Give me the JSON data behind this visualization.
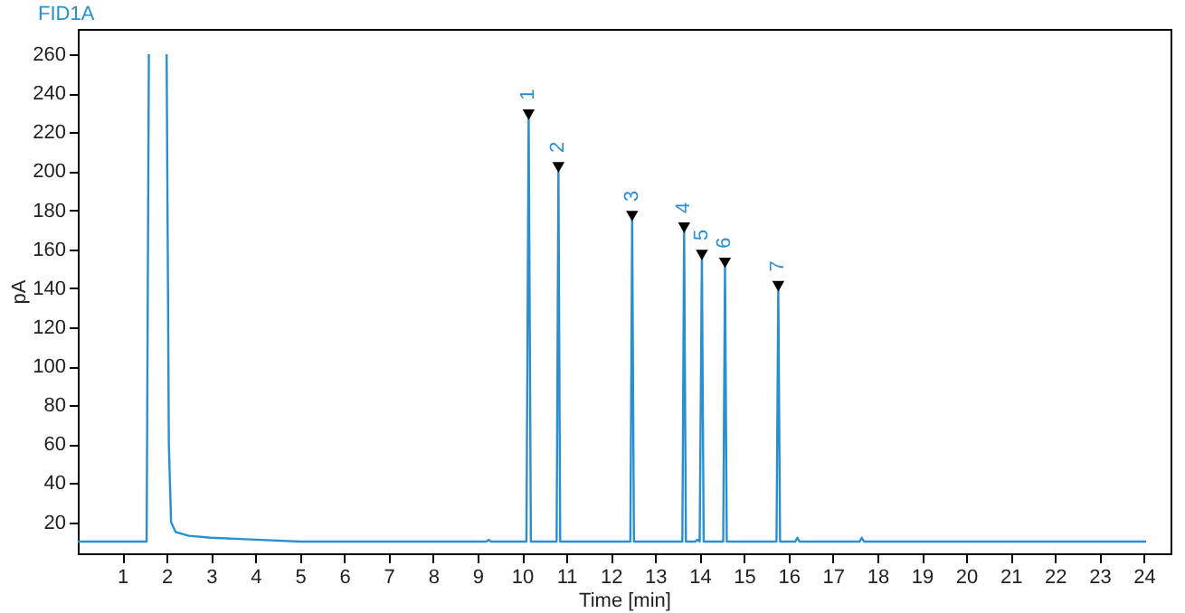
{
  "chart_data": {
    "type": "line",
    "title": "FID1A",
    "xlabel": "Time [min]",
    "ylabel": "pA",
    "xlim": [
      0,
      24.6
    ],
    "ylim": [
      4,
      273
    ],
    "xticks": [
      1,
      2,
      3,
      4,
      5,
      6,
      7,
      8,
      9,
      10,
      11,
      12,
      13,
      14,
      15,
      16,
      17,
      18,
      19,
      20,
      21,
      22,
      23,
      24
    ],
    "yticks": [
      20,
      40,
      60,
      80,
      100,
      120,
      140,
      160,
      180,
      200,
      220,
      240,
      260
    ],
    "series": [
      {
        "color": "#2a8fd0",
        "x": [
          0,
          1.55,
          1.6,
          1.62,
          1.98,
          2.0,
          2.05,
          2.1,
          2.2,
          2.5,
          3,
          4,
          5,
          6,
          9.2,
          9.25,
          9.3,
          10.1,
          10.15,
          10.2,
          10.78,
          10.82,
          10.86,
          12.44,
          12.48,
          12.52,
          13.61,
          13.65,
          13.69,
          13.9,
          13.95,
          14.0,
          14.05,
          14.09,
          14.53,
          14.57,
          14.61,
          15.73,
          15.77,
          15.81,
          16.15,
          16.2,
          16.25,
          17.6,
          17.65,
          17.7,
          24.05
        ],
        "values": [
          10,
          10,
          260,
          null,
          null,
          260,
          60,
          20,
          15,
          13,
          12,
          11,
          10,
          10,
          10,
          11,
          10,
          10,
          229,
          10,
          10,
          202,
          10,
          10,
          177,
          10,
          10,
          171,
          10,
          10,
          11,
          10,
          157,
          10,
          10,
          153,
          10,
          10,
          141,
          10,
          10,
          12,
          10,
          10,
          12,
          10,
          10
        ]
      },
      {
        "type": "scatter",
        "marker": "triangle",
        "color": "#000000",
        "x": [
          10.15,
          10.82,
          12.48,
          13.65,
          14.05,
          14.57,
          15.77
        ],
        "values": [
          229,
          202,
          177,
          171,
          157,
          153,
          141
        ]
      }
    ],
    "annotations": [
      {
        "text": "1",
        "x": 10.15,
        "y": 229
      },
      {
        "text": "2",
        "x": 10.82,
        "y": 202
      },
      {
        "text": "3",
        "x": 12.48,
        "y": 177
      },
      {
        "text": "4",
        "x": 13.65,
        "y": 171
      },
      {
        "text": "5",
        "x": 14.05,
        "y": 157
      },
      {
        "text": "6",
        "x": 14.57,
        "y": 153
      },
      {
        "text": "7",
        "x": 15.77,
        "y": 141
      }
    ]
  }
}
